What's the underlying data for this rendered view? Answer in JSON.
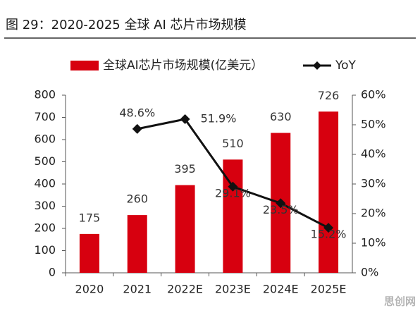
{
  "chart_data": {
    "type": "bar_line",
    "title": "图 29：2020-2025 全球 AI 芯片市场规模",
    "categories": [
      "2020",
      "2021",
      "2022E",
      "2023E",
      "2024E",
      "2025E"
    ],
    "series": [
      {
        "name": "全球AI芯片市场规模(亿美元）",
        "type": "bar",
        "color": "#d7000f",
        "values": [
          175,
          260,
          395,
          510,
          630,
          726
        ]
      },
      {
        "name": "YoY",
        "type": "line",
        "axis": "y2",
        "color": "#111111",
        "values": [
          null,
          48.6,
          51.9,
          29.1,
          23.5,
          15.2
        ],
        "value_labels": [
          null,
          "48.6%",
          "51.9%",
          "29.1%",
          "23.5%",
          "15.2%"
        ]
      }
    ],
    "ylim": [
      0,
      800
    ],
    "yticks": [
      0,
      100,
      200,
      300,
      400,
      500,
      600,
      700,
      800
    ],
    "y2lim": [
      0,
      60
    ],
    "y2ticks": [
      {
        "value": 0,
        "label": "0%"
      },
      {
        "value": 10,
        "label": "10%"
      },
      {
        "value": 20,
        "label": "20%"
      },
      {
        "value": 30,
        "label": "30%"
      },
      {
        "value": 40,
        "label": "40%"
      },
      {
        "value": 50,
        "label": "50%"
      },
      {
        "value": 60,
        "label": "60%"
      }
    ],
    "legend": "top",
    "watermark": "思创网"
  }
}
